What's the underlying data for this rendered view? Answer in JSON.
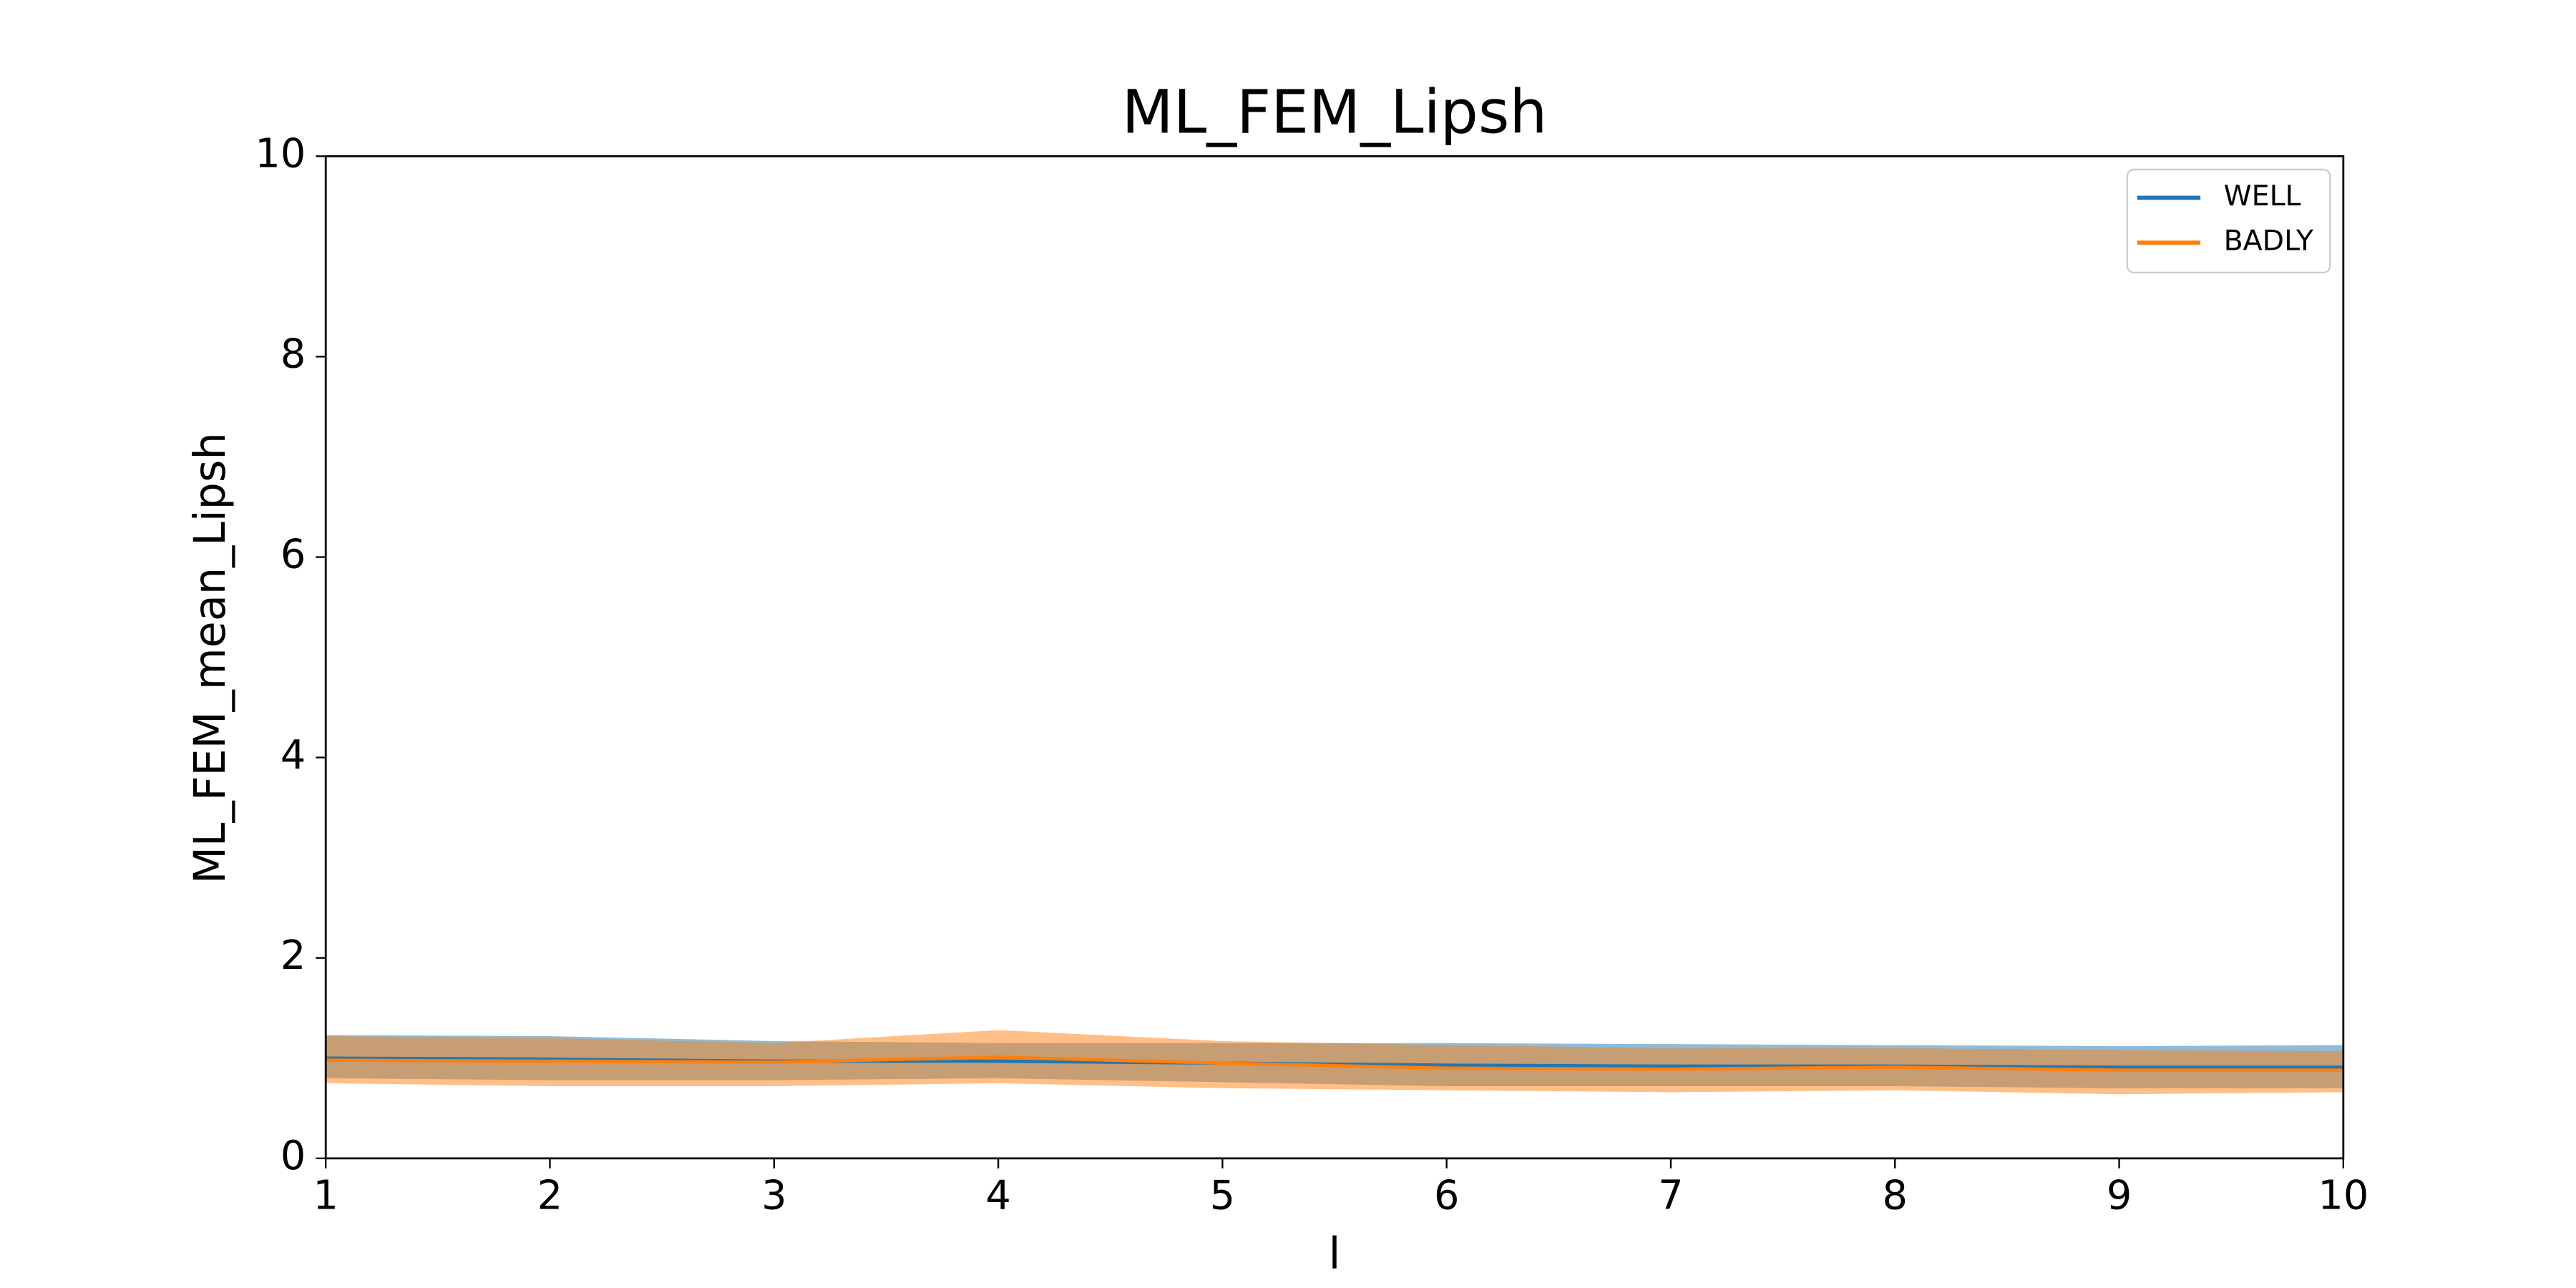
{
  "chart_data": {
    "type": "line",
    "title": "ML_FEM_Lipsh",
    "xlabel": "l",
    "ylabel": "ML_FEM_mean_Lipsh",
    "x": [
      1,
      2,
      3,
      4,
      5,
      6,
      7,
      8,
      9,
      10
    ],
    "series": [
      {
        "name": "WELL",
        "color": "#1f77b4",
        "values": [
          1.0,
          0.99,
          0.97,
          0.97,
          0.95,
          0.93,
          0.92,
          0.92,
          0.91,
          0.91
        ],
        "upper": [
          1.23,
          1.22,
          1.17,
          1.15,
          1.15,
          1.15,
          1.14,
          1.13,
          1.12,
          1.13
        ],
        "lower": [
          0.8,
          0.78,
          0.78,
          0.8,
          0.76,
          0.72,
          0.72,
          0.72,
          0.7,
          0.7
        ]
      },
      {
        "name": "BADLY",
        "color": "#ff7f0e",
        "values": [
          0.98,
          0.97,
          0.96,
          1.01,
          0.95,
          0.9,
          0.89,
          0.91,
          0.88,
          0.88
        ],
        "upper": [
          1.22,
          1.2,
          1.15,
          1.28,
          1.17,
          1.13,
          1.1,
          1.1,
          1.08,
          1.07
        ],
        "lower": [
          0.75,
          0.72,
          0.72,
          0.75,
          0.7,
          0.68,
          0.66,
          0.68,
          0.64,
          0.66
        ]
      }
    ],
    "xlim": [
      1,
      10
    ],
    "ylim": [
      0,
      10
    ],
    "xticks": [
      1,
      2,
      3,
      4,
      5,
      6,
      7,
      8,
      9,
      10
    ],
    "yticks": [
      0,
      2,
      4,
      6,
      8,
      10
    ],
    "legend": "upper right",
    "band_opacity": 0.5
  }
}
